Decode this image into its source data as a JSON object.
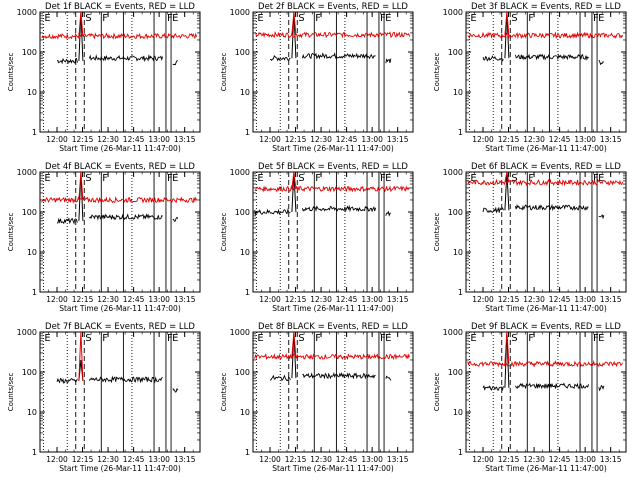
{
  "figure": {
    "ylabel": "Counts/sec",
    "xlabel": "Start Time (26-Mar-11 11:47:00)",
    "x_ticks": [
      "12:00",
      "12:15",
      "12:30",
      "12:45",
      "13:00",
      "13:15"
    ],
    "y_ticks": [
      "1",
      "10",
      "100",
      "1000"
    ],
    "colors": {
      "events": "#000000",
      "lld": "#e00000",
      "axes": "#000000"
    }
  },
  "chart_data": [
    {
      "type": "line",
      "title": "Det 1f BLACK = Events, RED = LLD",
      "yscale": "log",
      "ylim": [
        1,
        1000
      ],
      "xlim": [
        "11:50",
        "13:24"
      ],
      "markers": [
        {
          "label": "E",
          "at": "11:52",
          "style": "dotted"
        },
        {
          "label": "S",
          "at": "12:16",
          "style": "dashed"
        },
        {
          "label": "F",
          "at": "12:26",
          "style": "solid"
        },
        {
          "label": "F",
          "at": "13:04",
          "style": "solid"
        },
        {
          "label": "E",
          "at": "13:07",
          "style": "solid"
        }
      ],
      "vlines_extra": [
        {
          "at": "12:06",
          "style": "dotted"
        },
        {
          "at": "12:11",
          "style": "dashed"
        },
        {
          "at": "12:39",
          "style": "solid"
        },
        {
          "at": "12:44",
          "style": "dotted"
        },
        {
          "at": "12:57",
          "style": "solid"
        }
      ],
      "series": [
        {
          "name": "Events",
          "color": "#000000",
          "segments": [
            {
              "from": "12:00",
              "to": "12:12",
              "level": 60
            },
            {
              "from": "12:19",
              "to": "13:02",
              "level": 70
            },
            {
              "from": "13:08",
              "to": "13:11",
              "level": 55
            }
          ],
          "spike": {
            "at": "12:14",
            "value": 1000
          }
        },
        {
          "name": "LLD",
          "color": "#e00000",
          "segments": [
            {
              "from": "11:51",
              "to": "13:22",
              "level": 250
            }
          ],
          "spike": {
            "at": "12:14",
            "value": 1000
          }
        }
      ]
    },
    {
      "type": "line",
      "title": "Det 2f BLACK = Events, RED = LLD",
      "yscale": "log",
      "ylim": [
        1,
        1000
      ],
      "xlim": [
        "11:50",
        "13:24"
      ],
      "markers": [
        {
          "label": "E",
          "at": "11:52",
          "style": "dotted"
        },
        {
          "label": "S",
          "at": "12:16",
          "style": "dashed"
        },
        {
          "label": "F",
          "at": "12:26",
          "style": "solid"
        },
        {
          "label": "F",
          "at": "13:04",
          "style": "solid"
        },
        {
          "label": "E",
          "at": "13:07",
          "style": "solid"
        }
      ],
      "vlines_extra": [
        {
          "at": "12:06",
          "style": "dotted"
        },
        {
          "at": "12:11",
          "style": "dashed"
        },
        {
          "at": "12:39",
          "style": "solid"
        },
        {
          "at": "12:44",
          "style": "dotted"
        },
        {
          "at": "12:57",
          "style": "solid"
        }
      ],
      "series": [
        {
          "name": "Events",
          "color": "#000000",
          "segments": [
            {
              "from": "12:00",
              "to": "12:12",
              "level": 70
            },
            {
              "from": "12:19",
              "to": "13:02",
              "level": 80
            },
            {
              "from": "13:08",
              "to": "13:11",
              "level": 60
            }
          ],
          "spike": {
            "at": "12:14",
            "value": 1000
          }
        },
        {
          "name": "LLD",
          "color": "#e00000",
          "segments": [
            {
              "from": "11:51",
              "to": "13:22",
              "level": 270
            }
          ],
          "spike": {
            "at": "12:14",
            "value": 1000
          }
        }
      ]
    },
    {
      "type": "line",
      "title": "Det 3f BLACK = Events, RED = LLD",
      "yscale": "log",
      "ylim": [
        1,
        1000
      ],
      "xlim": [
        "11:50",
        "13:24"
      ],
      "markers": [
        {
          "label": "E",
          "at": "11:52",
          "style": "dotted"
        },
        {
          "label": "S",
          "at": "12:16",
          "style": "dashed"
        },
        {
          "label": "F",
          "at": "12:26",
          "style": "solid"
        },
        {
          "label": "F",
          "at": "13:04",
          "style": "solid"
        },
        {
          "label": "E",
          "at": "13:07",
          "style": "solid"
        }
      ],
      "vlines_extra": [
        {
          "at": "12:06",
          "style": "dotted"
        },
        {
          "at": "12:11",
          "style": "dashed"
        },
        {
          "at": "12:39",
          "style": "solid"
        },
        {
          "at": "12:44",
          "style": "dotted"
        },
        {
          "at": "12:57",
          "style": "solid"
        }
      ],
      "series": [
        {
          "name": "Events",
          "color": "#000000",
          "segments": [
            {
              "from": "12:00",
              "to": "12:12",
              "level": 70
            },
            {
              "from": "12:19",
              "to": "13:02",
              "level": 75
            },
            {
              "from": "13:08",
              "to": "13:11",
              "level": 55
            }
          ],
          "spike": {
            "at": "12:14",
            "value": 1000
          }
        },
        {
          "name": "LLD",
          "color": "#e00000",
          "segments": [
            {
              "from": "11:51",
              "to": "13:22",
              "level": 260
            }
          ],
          "spike": {
            "at": "12:14",
            "value": 1000
          }
        }
      ]
    },
    {
      "type": "line",
      "title": "Det 4f BLACK = Events, RED = LLD",
      "yscale": "log",
      "ylim": [
        1,
        1000
      ],
      "xlim": [
        "11:50",
        "13:24"
      ],
      "markers": [
        {
          "label": "E",
          "at": "11:52",
          "style": "dotted"
        },
        {
          "label": "S",
          "at": "12:16",
          "style": "dashed"
        },
        {
          "label": "F",
          "at": "12:26",
          "style": "solid"
        },
        {
          "label": "F",
          "at": "13:04",
          "style": "solid"
        },
        {
          "label": "E",
          "at": "13:07",
          "style": "solid"
        }
      ],
      "vlines_extra": [
        {
          "at": "12:06",
          "style": "dotted"
        },
        {
          "at": "12:11",
          "style": "dashed"
        },
        {
          "at": "12:39",
          "style": "solid"
        },
        {
          "at": "12:44",
          "style": "dotted"
        },
        {
          "at": "12:57",
          "style": "solid"
        }
      ],
      "series": [
        {
          "name": "Events",
          "color": "#000000",
          "segments": [
            {
              "from": "12:00",
              "to": "12:12",
              "level": 60
            },
            {
              "from": "12:19",
              "to": "13:02",
              "level": 75
            },
            {
              "from": "13:08",
              "to": "13:11",
              "level": 65
            }
          ],
          "spike": {
            "at": "12:14",
            "value": 1000
          }
        },
        {
          "name": "LLD",
          "color": "#e00000",
          "segments": [
            {
              "from": "11:51",
              "to": "13:22",
              "level": 200
            }
          ],
          "spike": {
            "at": "12:14",
            "value": 1000
          }
        }
      ]
    },
    {
      "type": "line",
      "title": "Det 5f BLACK = Events, RED = LLD",
      "yscale": "log",
      "ylim": [
        1,
        1000
      ],
      "xlim": [
        "11:50",
        "13:24"
      ],
      "markers": [
        {
          "label": "E",
          "at": "11:52",
          "style": "dotted"
        },
        {
          "label": "S",
          "at": "12:16",
          "style": "dashed"
        },
        {
          "label": "F",
          "at": "12:26",
          "style": "solid"
        },
        {
          "label": "F",
          "at": "13:04",
          "style": "solid"
        },
        {
          "label": "E",
          "at": "13:07",
          "style": "solid"
        }
      ],
      "vlines_extra": [
        {
          "at": "12:06",
          "style": "dotted"
        },
        {
          "at": "12:11",
          "style": "dashed"
        },
        {
          "at": "12:39",
          "style": "solid"
        },
        {
          "at": "12:44",
          "style": "dotted"
        },
        {
          "at": "12:57",
          "style": "solid"
        }
      ],
      "series": [
        {
          "name": "Events",
          "color": "#000000",
          "segments": [
            {
              "from": "11:51",
              "to": "12:12",
              "level": 100
            },
            {
              "from": "12:19",
              "to": "13:02",
              "level": 120
            },
            {
              "from": "13:08",
              "to": "13:11",
              "level": 90
            }
          ],
          "spike": {
            "at": "12:14",
            "value": 1000
          }
        },
        {
          "name": "LLD",
          "color": "#e00000",
          "segments": [
            {
              "from": "11:51",
              "to": "13:22",
              "level": 380
            }
          ],
          "spike": {
            "at": "12:14",
            "value": 1000
          }
        }
      ]
    },
    {
      "type": "line",
      "title": "Det 6f BLACK = Events, RED = LLD",
      "yscale": "log",
      "ylim": [
        1,
        1000
      ],
      "xlim": [
        "11:50",
        "13:24"
      ],
      "markers": [
        {
          "label": "E",
          "at": "11:52",
          "style": "dotted"
        },
        {
          "label": "S",
          "at": "12:16",
          "style": "dashed"
        },
        {
          "label": "F",
          "at": "12:26",
          "style": "solid"
        },
        {
          "label": "F",
          "at": "13:04",
          "style": "solid"
        },
        {
          "label": "E",
          "at": "13:07",
          "style": "solid"
        }
      ],
      "vlines_extra": [
        {
          "at": "12:06",
          "style": "dotted"
        },
        {
          "at": "12:11",
          "style": "dashed"
        },
        {
          "at": "12:39",
          "style": "solid"
        },
        {
          "at": "12:44",
          "style": "dotted"
        },
        {
          "at": "12:57",
          "style": "solid"
        }
      ],
      "series": [
        {
          "name": "Events",
          "color": "#000000",
          "segments": [
            {
              "from": "12:00",
              "to": "12:12",
              "level": 110
            },
            {
              "from": "12:19",
              "to": "13:02",
              "level": 130
            },
            {
              "from": "13:08",
              "to": "13:11",
              "level": 80
            }
          ],
          "spike": {
            "at": "12:14",
            "value": 1000
          }
        },
        {
          "name": "LLD",
          "color": "#e00000",
          "segments": [
            {
              "from": "11:51",
              "to": "13:22",
              "level": 550
            }
          ],
          "spike": {
            "at": "12:14",
            "value": 1000
          }
        }
      ]
    },
    {
      "type": "line",
      "title": "Det 7f BLACK = Events, RED = LLD",
      "yscale": "log",
      "ylim": [
        1,
        1000
      ],
      "xlim": [
        "11:50",
        "13:24"
      ],
      "markers": [
        {
          "label": "E",
          "at": "11:52",
          "style": "dotted"
        },
        {
          "label": "S",
          "at": "12:16",
          "style": "dashed"
        },
        {
          "label": "F",
          "at": "12:26",
          "style": "solid"
        },
        {
          "label": "F",
          "at": "13:04",
          "style": "solid"
        },
        {
          "label": "E",
          "at": "13:07",
          "style": "solid"
        }
      ],
      "vlines_extra": [
        {
          "at": "12:06",
          "style": "dotted"
        },
        {
          "at": "12:11",
          "style": "dashed"
        },
        {
          "at": "12:39",
          "style": "solid"
        },
        {
          "at": "12:44",
          "style": "dotted"
        },
        {
          "at": "12:57",
          "style": "solid"
        }
      ],
      "series": [
        {
          "name": "Events",
          "color": "#000000",
          "segments": [
            {
              "from": "12:00",
              "to": "12:12",
              "level": 60
            },
            {
              "from": "12:19",
              "to": "13:02",
              "level": 65
            },
            {
              "from": "13:08",
              "to": "13:11",
              "level": 35
            }
          ],
          "spike": {
            "at": "12:14",
            "value": 200
          }
        },
        {
          "name": "LLD",
          "color": "#e00000",
          "segments": [],
          "spike": {
            "at": "12:14",
            "value": 1000
          }
        }
      ]
    },
    {
      "type": "line",
      "title": "Det 8f BLACK = Events, RED = LLD",
      "yscale": "log",
      "ylim": [
        1,
        1000
      ],
      "xlim": [
        "11:50",
        "13:24"
      ],
      "markers": [
        {
          "label": "E",
          "at": "11:52",
          "style": "dotted"
        },
        {
          "label": "S",
          "at": "12:16",
          "style": "dashed"
        },
        {
          "label": "F",
          "at": "12:26",
          "style": "solid"
        },
        {
          "label": "F",
          "at": "13:04",
          "style": "solid"
        },
        {
          "label": "E",
          "at": "13:07",
          "style": "solid"
        }
      ],
      "vlines_extra": [
        {
          "at": "12:06",
          "style": "dotted"
        },
        {
          "at": "12:11",
          "style": "dashed"
        },
        {
          "at": "12:39",
          "style": "solid"
        },
        {
          "at": "12:44",
          "style": "dotted"
        },
        {
          "at": "12:57",
          "style": "solid"
        }
      ],
      "series": [
        {
          "name": "Events",
          "color": "#000000",
          "segments": [
            {
              "from": "12:00",
              "to": "12:12",
              "level": 70
            },
            {
              "from": "12:19",
              "to": "13:02",
              "level": 80
            },
            {
              "from": "13:08",
              "to": "13:11",
              "level": 70
            }
          ],
          "spike": {
            "at": "12:14",
            "value": 1000
          }
        },
        {
          "name": "LLD",
          "color": "#e00000",
          "segments": [
            {
              "from": "11:51",
              "to": "13:22",
              "level": 240
            }
          ],
          "spike": {
            "at": "12:14",
            "value": 1000
          }
        }
      ]
    },
    {
      "type": "line",
      "title": "Det 9f BLACK = Events, RED = LLD",
      "yscale": "log",
      "ylim": [
        1,
        1000
      ],
      "xlim": [
        "11:50",
        "13:24"
      ],
      "markers": [
        {
          "label": "E",
          "at": "11:52",
          "style": "dotted"
        },
        {
          "label": "S",
          "at": "12:16",
          "style": "dashed"
        },
        {
          "label": "F",
          "at": "12:26",
          "style": "solid"
        },
        {
          "label": "F",
          "at": "13:04",
          "style": "solid"
        },
        {
          "label": "E",
          "at": "13:07",
          "style": "solid"
        }
      ],
      "vlines_extra": [
        {
          "at": "12:06",
          "style": "dotted"
        },
        {
          "at": "12:11",
          "style": "dashed"
        },
        {
          "at": "12:39",
          "style": "solid"
        },
        {
          "at": "12:44",
          "style": "dotted"
        },
        {
          "at": "12:57",
          "style": "solid"
        }
      ],
      "series": [
        {
          "name": "Events",
          "color": "#000000",
          "segments": [
            {
              "from": "12:00",
              "to": "12:12",
              "level": 40
            },
            {
              "from": "12:19",
              "to": "13:02",
              "level": 45
            },
            {
              "from": "13:08",
              "to": "13:11",
              "level": 40
            }
          ],
          "spike": {
            "at": "12:14",
            "value": 1000
          }
        },
        {
          "name": "LLD",
          "color": "#e00000",
          "segments": [
            {
              "from": "11:51",
              "to": "13:22",
              "level": 160
            }
          ],
          "spike": {
            "at": "12:14",
            "value": 1000
          }
        }
      ]
    }
  ]
}
